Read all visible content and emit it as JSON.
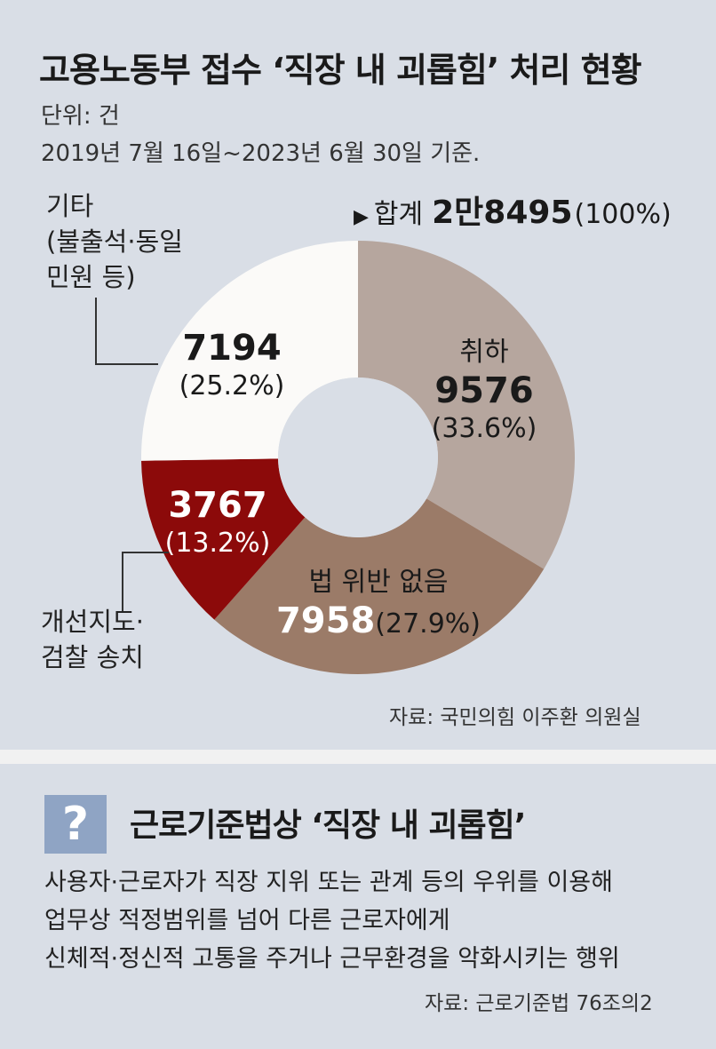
{
  "header": {
    "title": "고용노동부 접수 ‘직장 내 괴롭힘’ 처리 현황",
    "unit": "단위: 건",
    "date": "2019년 7월 16일~2023년 6월 30일 기준."
  },
  "total": {
    "label": "합계",
    "value": "2만8495",
    "pct": "(100%)"
  },
  "chart_data": {
    "type": "pie",
    "title": "고용노동부 접수 ‘직장 내 괴롭힘’ 처리 현황",
    "unit": "건",
    "total": 28495,
    "slices": [
      {
        "label": "취하",
        "value": 9576,
        "percent": 33.6,
        "color": "#b6a69e"
      },
      {
        "label": "법 위반 없음",
        "value": 7958,
        "percent": 27.9,
        "color": "#9b7b68"
      },
      {
        "label": "개선지도·검찰 송치",
        "value": 3767,
        "percent": 13.2,
        "color": "#8c0a0a"
      },
      {
        "label": "기타(불출석·동일 민원 등)",
        "value": 7194,
        "percent": 25.2,
        "color": "#fbfaf8"
      }
    ]
  },
  "slice_labels": {
    "withdraw": {
      "name": "취하",
      "value": "9576",
      "pct": "(33.6%)"
    },
    "no_violation": {
      "name": "법 위반 없음",
      "value": "7958",
      "pct": "(27.9%)"
    },
    "guidance": {
      "value": "3767",
      "pct": "(13.2%)",
      "name_line1": "개선지도·",
      "name_line2": "검찰 송치"
    },
    "other": {
      "value": "7194",
      "pct": "(25.2%)",
      "name_line1": "기타",
      "name_line2": "(불출석·동일",
      "name_line3": "민원 등)"
    }
  },
  "source1": "자료: 국민의힘 이주환 의원실",
  "definition": {
    "icon": "?",
    "title": "근로기준법상 ‘직장 내 괴롭힘’",
    "lines": [
      "사용자·근로자가 직장 지위 또는 관계 등의 우위를 이용해",
      "업무상 적정범위를 넘어 다른 근로자에게",
      "신체적·정신적 고통을 주거나 근무환경을 악화시키는 행위"
    ],
    "source": "자료: 근로기준법 76조의2"
  }
}
